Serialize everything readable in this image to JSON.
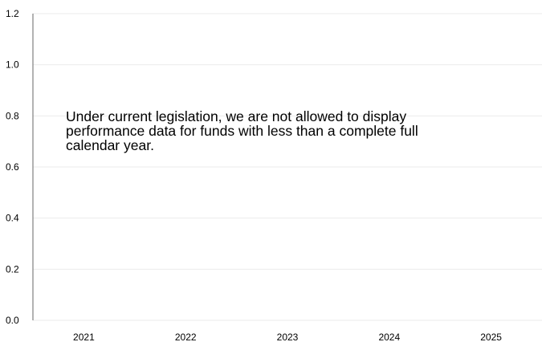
{
  "chart_data": {
    "type": "bar",
    "categories": [
      "2021",
      "2022",
      "2023",
      "2024",
      "2025"
    ],
    "series": [],
    "y_ticks": [
      "0.0",
      "0.2",
      "0.4",
      "0.6",
      "0.8",
      "1.0",
      "1.2"
    ],
    "ylim": [
      0,
      1.2
    ],
    "grid": true,
    "title": "",
    "xlabel": "",
    "ylabel": ""
  },
  "notice": {
    "line1": "Under current legislation, we are not allowed to display",
    "line2": "performance data for funds with less than a complete full",
    "line3": "calendar year."
  },
  "colors": {
    "grid": "#ebebeb",
    "axis": "#666666",
    "text": "#000000"
  }
}
